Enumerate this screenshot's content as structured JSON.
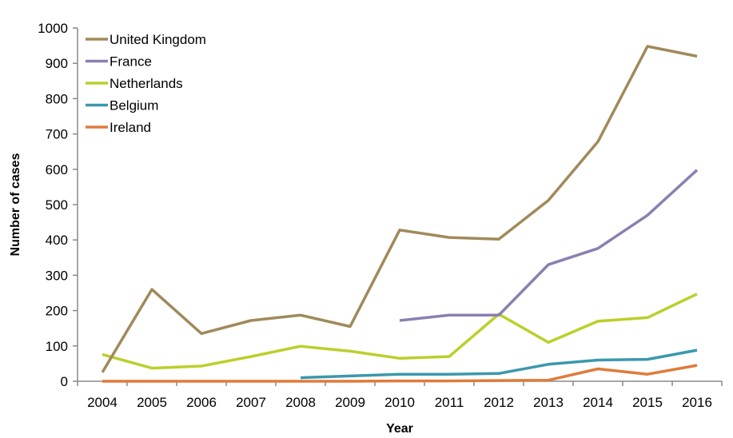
{
  "chart_data": {
    "type": "line",
    "title": "",
    "xlabel": "Year",
    "ylabel": "Number of cases",
    "ylim": [
      0,
      1000
    ],
    "yticks": [
      0,
      100,
      200,
      300,
      400,
      500,
      600,
      700,
      800,
      900,
      1000
    ],
    "ytick_labels": [
      "0",
      "100",
      "200",
      "300",
      "400",
      "500",
      "600",
      "700",
      "800",
      "900",
      "1000"
    ],
    "categories": [
      "2004",
      "2005",
      "2006",
      "2007",
      "2008",
      "2009",
      "2010",
      "2011",
      "2012",
      "2013",
      "2014",
      "2015",
      "2016"
    ],
    "grid": false,
    "legend_position": "top-left",
    "series": [
      {
        "name": "United Kingdom",
        "color": "#a08a5a",
        "values": [
          25,
          260,
          135,
          172,
          187,
          155,
          428,
          407,
          402,
          512,
          678,
          948,
          920
        ]
      },
      {
        "name": "France",
        "color": "#8c7fb0",
        "values": [
          null,
          null,
          null,
          null,
          null,
          null,
          172,
          187,
          187,
          330,
          376,
          470,
          598
        ]
      },
      {
        "name": "Netherlands",
        "color": "#bccf2b",
        "values": [
          76,
          37,
          43,
          70,
          99,
          85,
          65,
          70,
          190,
          110,
          170,
          180,
          247
        ]
      },
      {
        "name": "Belgium",
        "color": "#3b98ad",
        "values": [
          null,
          null,
          null,
          null,
          10,
          15,
          20,
          20,
          22,
          48,
          60,
          62,
          88
        ]
      },
      {
        "name": "Ireland",
        "color": "#e07b3a",
        "values": [
          0,
          0,
          0,
          0,
          0,
          0,
          1,
          1,
          2,
          3,
          35,
          20,
          45
        ]
      }
    ]
  }
}
